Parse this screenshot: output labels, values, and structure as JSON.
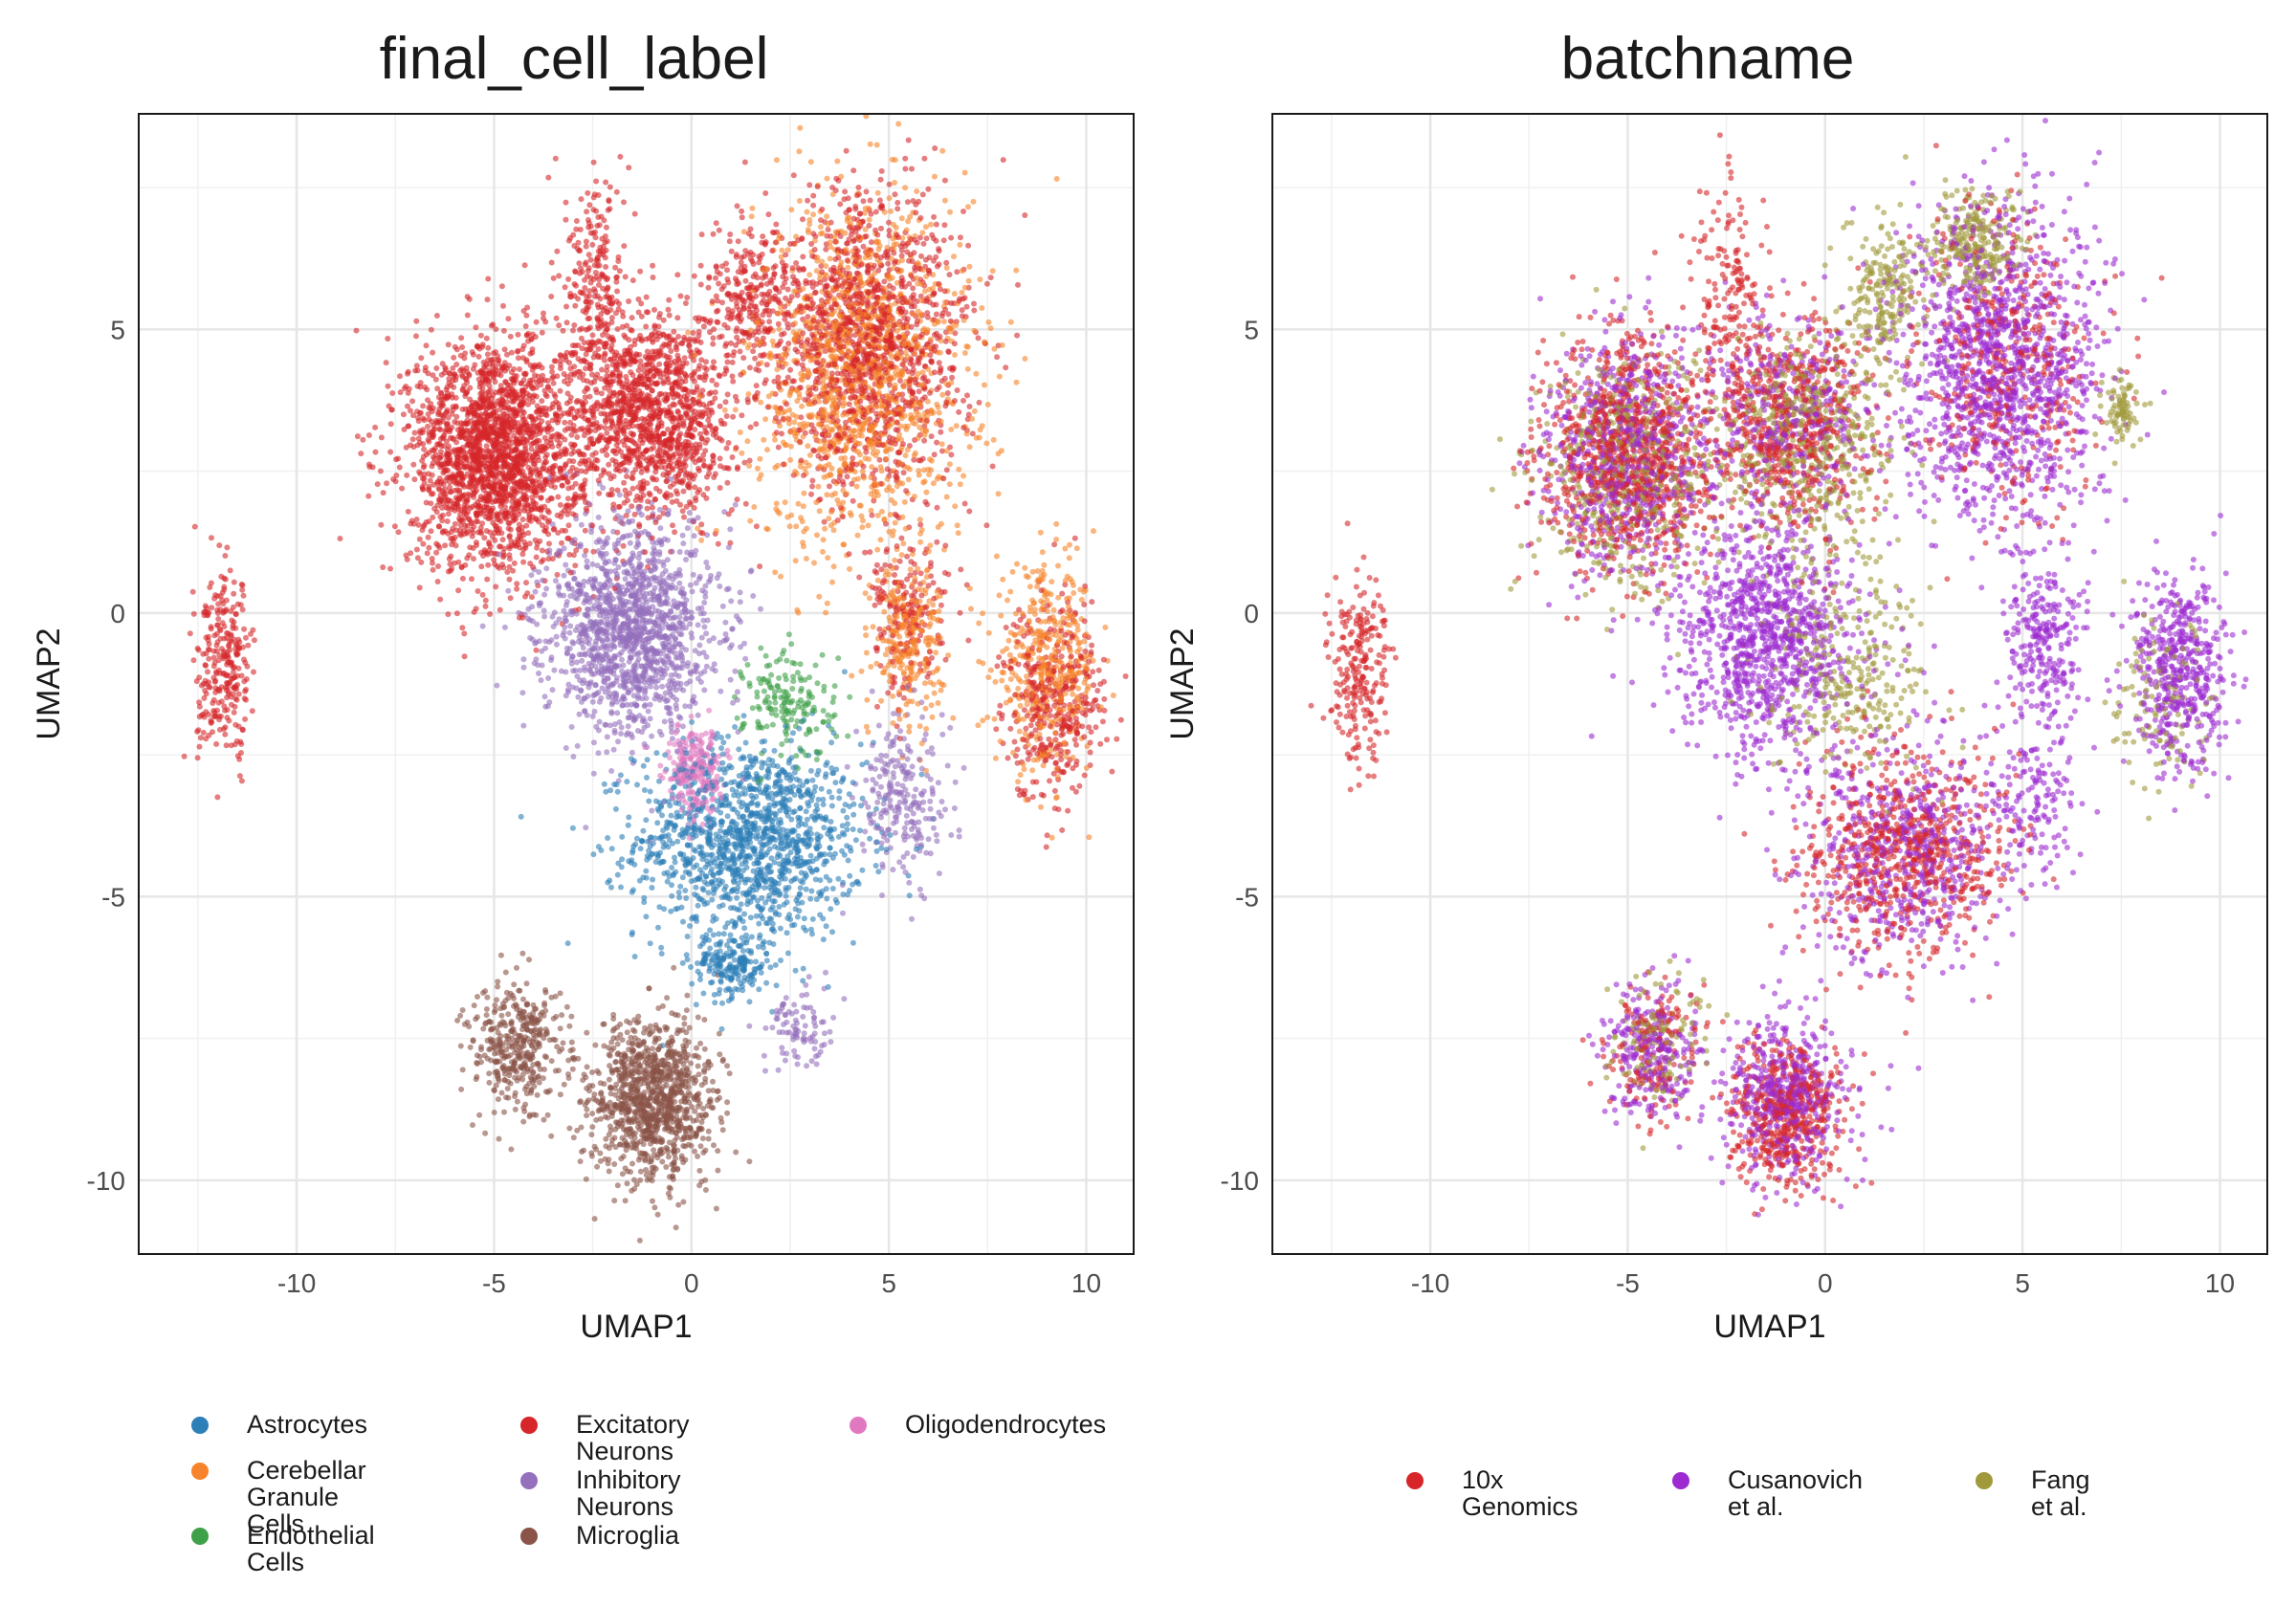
{
  "panels": [
    {
      "id": "left",
      "title": "final_cell_label",
      "legend": [
        {
          "label": "Astrocytes",
          "color": "#2d7fb8"
        },
        {
          "label": "Cerebellar Granule\nCells",
          "color": "#f7832a"
        },
        {
          "label": "Endothelial Cells",
          "color": "#3fa04a"
        },
        {
          "label": "Excitatory Neurons",
          "color": "#d6262a"
        },
        {
          "label": "Inhibitory Neurons",
          "color": "#9470bd"
        },
        {
          "label": "Microglia",
          "color": "#8b5448"
        },
        {
          "label": "Oligodendrocytes",
          "color": "#e179c0"
        }
      ]
    },
    {
      "id": "right",
      "title": "batchname",
      "legend": [
        {
          "label": "10x Genomics",
          "color": "#d6262a"
        },
        {
          "label": "Cusanovich et al.",
          "color": "#9d2bd0"
        },
        {
          "label": "Fang et al.",
          "color": "#a09a3c"
        }
      ]
    }
  ],
  "chart_data": [
    {
      "type": "scatter",
      "title": "final_cell_label",
      "xlabel": "UMAP1",
      "ylabel": "UMAP2",
      "xlim": [
        -14.0,
        11.2
      ],
      "ylim": [
        -11.3,
        8.8
      ],
      "xticks": [
        -10,
        -5,
        0,
        5,
        10
      ],
      "yticks": [
        -10,
        -5,
        0,
        5
      ],
      "grid": true,
      "legend_position": "bottom",
      "series": [
        {
          "name": "Astrocytes",
          "clusters": [
            {
              "cx": 1.5,
              "cy": -4.0,
              "sx": 2.0,
              "sy": 1.2,
              "n": 1300
            },
            {
              "cx": 1.0,
              "cy": -6.2,
              "sx": 0.7,
              "sy": 0.4,
              "n": 200
            }
          ]
        },
        {
          "name": "Cerebellar Granule Cells",
          "clusters": [
            {
              "cx": 4.3,
              "cy": 4.2,
              "sx": 1.9,
              "sy": 2.2,
              "n": 1300
            },
            {
              "cx": 9.0,
              "cy": -1.0,
              "sx": 0.9,
              "sy": 1.2,
              "n": 420
            },
            {
              "cx": 5.5,
              "cy": -0.5,
              "sx": 0.6,
              "sy": 0.9,
              "n": 250
            }
          ]
        },
        {
          "name": "Endothelial Cells",
          "clusters": [
            {
              "cx": 2.5,
              "cy": -1.6,
              "sx": 0.8,
              "sy": 0.7,
              "n": 170
            }
          ]
        },
        {
          "name": "Excitatory Neurons",
          "clusters": [
            {
              "cx": -5.0,
              "cy": 2.8,
              "sx": 1.5,
              "sy": 1.4,
              "n": 2100
            },
            {
              "cx": -1.0,
              "cy": 3.5,
              "sx": 1.4,
              "sy": 1.3,
              "n": 1300
            },
            {
              "cx": 4.5,
              "cy": 4.8,
              "sx": 1.7,
              "sy": 1.8,
              "n": 1300
            },
            {
              "cx": -11.8,
              "cy": -1.0,
              "sx": 0.5,
              "sy": 1.1,
              "n": 280
            },
            {
              "cx": 9.2,
              "cy": -1.5,
              "sx": 0.9,
              "sy": 1.2,
              "n": 380
            },
            {
              "cx": 1.5,
              "cy": 5.5,
              "sx": 0.8,
              "sy": 1.0,
              "n": 260
            },
            {
              "cx": -2.4,
              "cy": 5.8,
              "sx": 0.6,
              "sy": 1.3,
              "n": 220
            },
            {
              "cx": 5.5,
              "cy": 0.0,
              "sx": 0.7,
              "sy": 1.0,
              "n": 180
            }
          ]
        },
        {
          "name": "Inhibitory Neurons",
          "clusters": [
            {
              "cx": -1.5,
              "cy": -0.3,
              "sx": 1.5,
              "sy": 1.3,
              "n": 1400
            },
            {
              "cx": 5.3,
              "cy": -3.3,
              "sx": 0.8,
              "sy": 1.0,
              "n": 230
            },
            {
              "cx": 2.7,
              "cy": -7.3,
              "sx": 0.6,
              "sy": 0.5,
              "n": 90
            }
          ]
        },
        {
          "name": "Microglia",
          "clusters": [
            {
              "cx": -1.0,
              "cy": -8.6,
              "sx": 1.1,
              "sy": 1.0,
              "n": 1050
            },
            {
              "cx": -4.4,
              "cy": -7.7,
              "sx": 0.8,
              "sy": 0.8,
              "n": 380
            }
          ]
        },
        {
          "name": "Oligodendrocytes",
          "clusters": [
            {
              "cx": 0.1,
              "cy": -2.8,
              "sx": 0.5,
              "sy": 0.6,
              "n": 240
            }
          ]
        }
      ]
    },
    {
      "type": "scatter",
      "title": "batchname",
      "xlabel": "UMAP1",
      "ylabel": "UMAP2",
      "xlim": [
        -14.0,
        11.2
      ],
      "ylim": [
        -11.3,
        8.8
      ],
      "xticks": [
        -10,
        -5,
        0,
        5,
        10
      ],
      "yticks": [
        -10,
        -5,
        0,
        5
      ],
      "grid": true,
      "legend_position": "bottom",
      "series": [
        {
          "name": "10x Genomics",
          "clusters": [
            {
              "cx": -5.0,
              "cy": 2.8,
              "sx": 1.5,
              "sy": 1.4,
              "n": 900
            },
            {
              "cx": -1.0,
              "cy": 3.4,
              "sx": 1.4,
              "sy": 1.3,
              "n": 600
            },
            {
              "cx": 2.0,
              "cy": -4.2,
              "sx": 1.8,
              "sy": 1.3,
              "n": 700
            },
            {
              "cx": -11.8,
              "cy": -1.0,
              "sx": 0.5,
              "sy": 1.1,
              "n": 230
            },
            {
              "cx": -1.0,
              "cy": -8.8,
              "sx": 1.0,
              "sy": 0.9,
              "n": 500
            },
            {
              "cx": -2.4,
              "cy": 5.8,
              "sx": 0.6,
              "sy": 1.3,
              "n": 150
            },
            {
              "cx": 4.5,
              "cy": 4.5,
              "sx": 1.7,
              "sy": 1.9,
              "n": 400
            },
            {
              "cx": -4.4,
              "cy": -7.7,
              "sx": 0.8,
              "sy": 0.8,
              "n": 150
            }
          ]
        },
        {
          "name": "Cusanovich et al.",
          "clusters": [
            {
              "cx": 4.4,
              "cy": 4.3,
              "sx": 1.8,
              "sy": 2.0,
              "n": 1300
            },
            {
              "cx": -1.5,
              "cy": -0.5,
              "sx": 1.6,
              "sy": 1.4,
              "n": 1000
            },
            {
              "cx": -5.0,
              "cy": 2.8,
              "sx": 1.5,
              "sy": 1.4,
              "n": 700
            },
            {
              "cx": 9.0,
              "cy": -1.0,
              "sx": 0.9,
              "sy": 1.2,
              "n": 500
            },
            {
              "cx": 2.0,
              "cy": -4.2,
              "sx": 1.8,
              "sy": 1.3,
              "n": 600
            },
            {
              "cx": -1.0,
              "cy": -8.6,
              "sx": 1.1,
              "sy": 1.0,
              "n": 500
            },
            {
              "cx": -4.4,
              "cy": -7.7,
              "sx": 0.8,
              "sy": 0.8,
              "n": 260
            },
            {
              "cx": 5.5,
              "cy": -0.5,
              "sx": 0.7,
              "sy": 1.0,
              "n": 250
            },
            {
              "cx": 5.3,
              "cy": -3.3,
              "sx": 0.8,
              "sy": 1.0,
              "n": 150
            },
            {
              "cx": -1.0,
              "cy": 3.4,
              "sx": 1.4,
              "sy": 1.3,
              "n": 400
            }
          ]
        },
        {
          "name": "Fang et al.",
          "clusters": [
            {
              "cx": -5.0,
              "cy": 2.5,
              "sx": 1.6,
              "sy": 1.4,
              "n": 500
            },
            {
              "cx": -0.5,
              "cy": 3.0,
              "sx": 1.5,
              "sy": 1.3,
              "n": 500
            },
            {
              "cx": 1.5,
              "cy": 5.6,
              "sx": 0.7,
              "sy": 0.9,
              "n": 200
            },
            {
              "cx": 3.8,
              "cy": 6.5,
              "sx": 0.8,
              "sy": 0.6,
              "n": 250
            },
            {
              "cx": 0.5,
              "cy": -1.0,
              "sx": 1.5,
              "sy": 1.3,
              "n": 300
            },
            {
              "cx": 7.5,
              "cy": 3.6,
              "sx": 0.3,
              "sy": 0.5,
              "n": 80
            },
            {
              "cx": -4.2,
              "cy": -7.6,
              "sx": 0.8,
              "sy": 0.8,
              "n": 130
            },
            {
              "cx": 8.5,
              "cy": -1.5,
              "sx": 0.8,
              "sy": 1.0,
              "n": 120
            }
          ]
        }
      ]
    }
  ]
}
